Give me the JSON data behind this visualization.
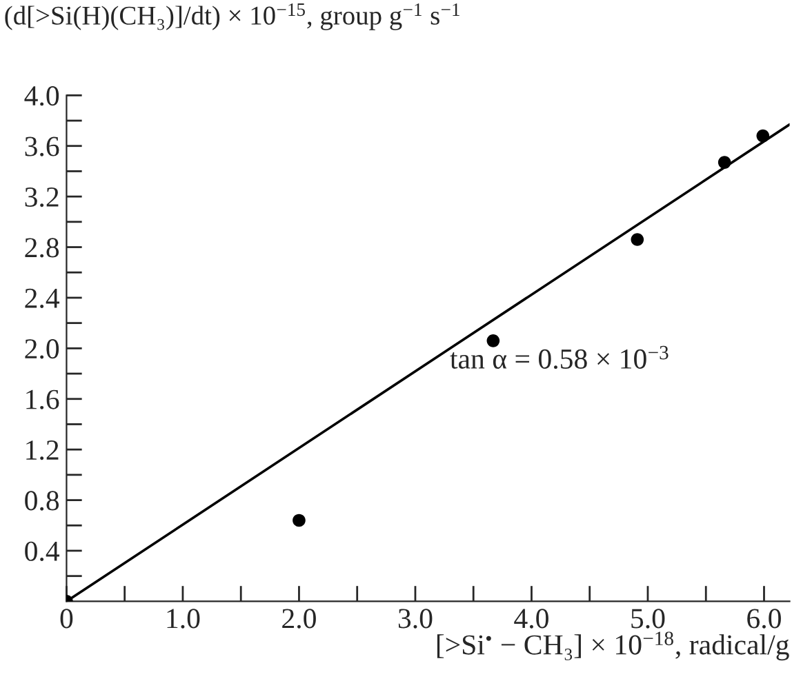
{
  "chart_data": {
    "type": "scatter",
    "ylabel": "(d[>Si(H)(CH₃)]/dt) × 10$^{−15}$, group g$^{−1}$ s$^{−1}$",
    "xlabel": "[>Si$^{•}$ − CH₃] × 10$^{−18}$, radical/g",
    "annotations": [
      "tan α = 0.58 × 10$^{−3}$"
    ],
    "series": [
      {
        "marker": "circle",
        "color": "#000000",
        "x": [
          0.0,
          2.0,
          3.67,
          4.91,
          5.66,
          5.99
        ],
        "values": [
          0.0,
          0.64,
          2.06,
          2.86,
          3.47,
          3.68
        ]
      },
      {
        "type": "line",
        "color": "#000000",
        "x": [
          0.0,
          6.22
        ],
        "values": [
          0.0,
          3.77
        ]
      }
    ],
    "xlim": [
      0,
      6.22
    ],
    "ylim": [
      0,
      4.0
    ],
    "xticks": [
      0,
      {
        "value": 0.5,
        "label": null
      },
      {
        "value": 1,
        "label": "1.0"
      },
      {
        "value": 1.5,
        "label": null
      },
      {
        "value": 2,
        "label": "2.0"
      },
      {
        "value": 2.5,
        "label": null
      },
      {
        "value": 3,
        "label": "3.0"
      },
      {
        "value": 3.5,
        "label": null
      },
      {
        "value": 4,
        "label": "4.0"
      },
      {
        "value": 4.5,
        "label": null
      },
      {
        "value": 5,
        "label": "5.0"
      },
      {
        "value": 5.5,
        "label": null
      },
      {
        "value": 6,
        "label": "6.0"
      }
    ],
    "yticks": [
      {
        "value": 0.2,
        "label": null
      },
      {
        "value": 0.4,
        "label": "0.4"
      },
      {
        "value": 0.6,
        "label": null
      },
      {
        "value": 0.8,
        "label": "0.8"
      },
      {
        "value": 1.0,
        "label": null
      },
      {
        "value": 1.2,
        "label": "1.2"
      },
      {
        "value": 1.4,
        "label": null
      },
      {
        "value": 1.6,
        "label": "1.6"
      },
      {
        "value": 1.8,
        "label": null
      },
      {
        "value": 2,
        "label": "2.0"
      },
      {
        "value": 2.2,
        "label": null
      },
      {
        "value": 2.4,
        "label": "2.4"
      },
      {
        "value": 2.6,
        "label": null
      },
      {
        "value": 2.8,
        "label": "2.8"
      },
      {
        "value": 3.0,
        "label": null
      },
      {
        "value": 3.2,
        "label": "3.2"
      },
      {
        "value": 3.4,
        "label": null
      },
      {
        "value": 3.6,
        "label": "3.6"
      },
      {
        "value": 3.8,
        "label": null
      },
      {
        "value": 4,
        "label": "4.0"
      }
    ],
    "grid": false,
    "legend": false
  }
}
